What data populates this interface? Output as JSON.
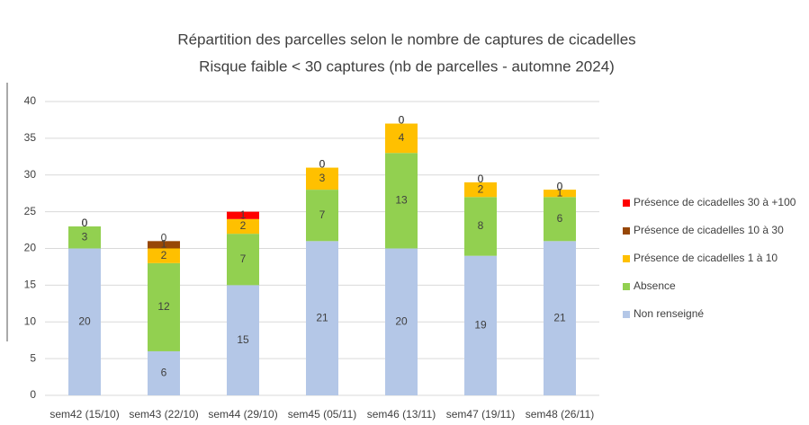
{
  "chart_data": {
    "type": "stacked_bar",
    "title": "Répartition des parcelles selon le nombre de captures de cicadelles",
    "subtitle": "Risque faible < 30 captures (nb de parcelles - automne 2024)",
    "categories": [
      "sem42 (15/10)",
      "sem43 (22/10)",
      "sem44 (29/10)",
      "sem45 (05/11)",
      "sem46 (13/11)",
      "sem47 (19/11)",
      "sem48 (26/11)"
    ],
    "series": [
      {
        "name": "Non renseigné",
        "color": "#b4c7e7",
        "values": [
          20,
          6,
          15,
          21,
          20,
          19,
          21
        ]
      },
      {
        "name": "Absence",
        "color": "#92d050",
        "values": [
          3,
          12,
          7,
          7,
          13,
          8,
          6
        ]
      },
      {
        "name": "Présence de cicadelles 1 à 10",
        "color": "#ffc000",
        "values": [
          0,
          2,
          2,
          3,
          4,
          2,
          1
        ]
      },
      {
        "name": "Présence de cicadelles 10 à 30",
        "color": "#974706",
        "values": [
          0,
          1,
          0,
          0,
          0,
          0,
          0
        ]
      },
      {
        "name": "Présence de cicadelles 30 à +100",
        "color": "#ff0000",
        "values": [
          0,
          0,
          1,
          0,
          0,
          0,
          0
        ]
      }
    ],
    "ylim": [
      0,
      40
    ],
    "yticks": [
      0,
      5,
      10,
      15,
      20,
      25,
      30,
      35,
      40
    ],
    "grid": true,
    "legend": "right"
  }
}
